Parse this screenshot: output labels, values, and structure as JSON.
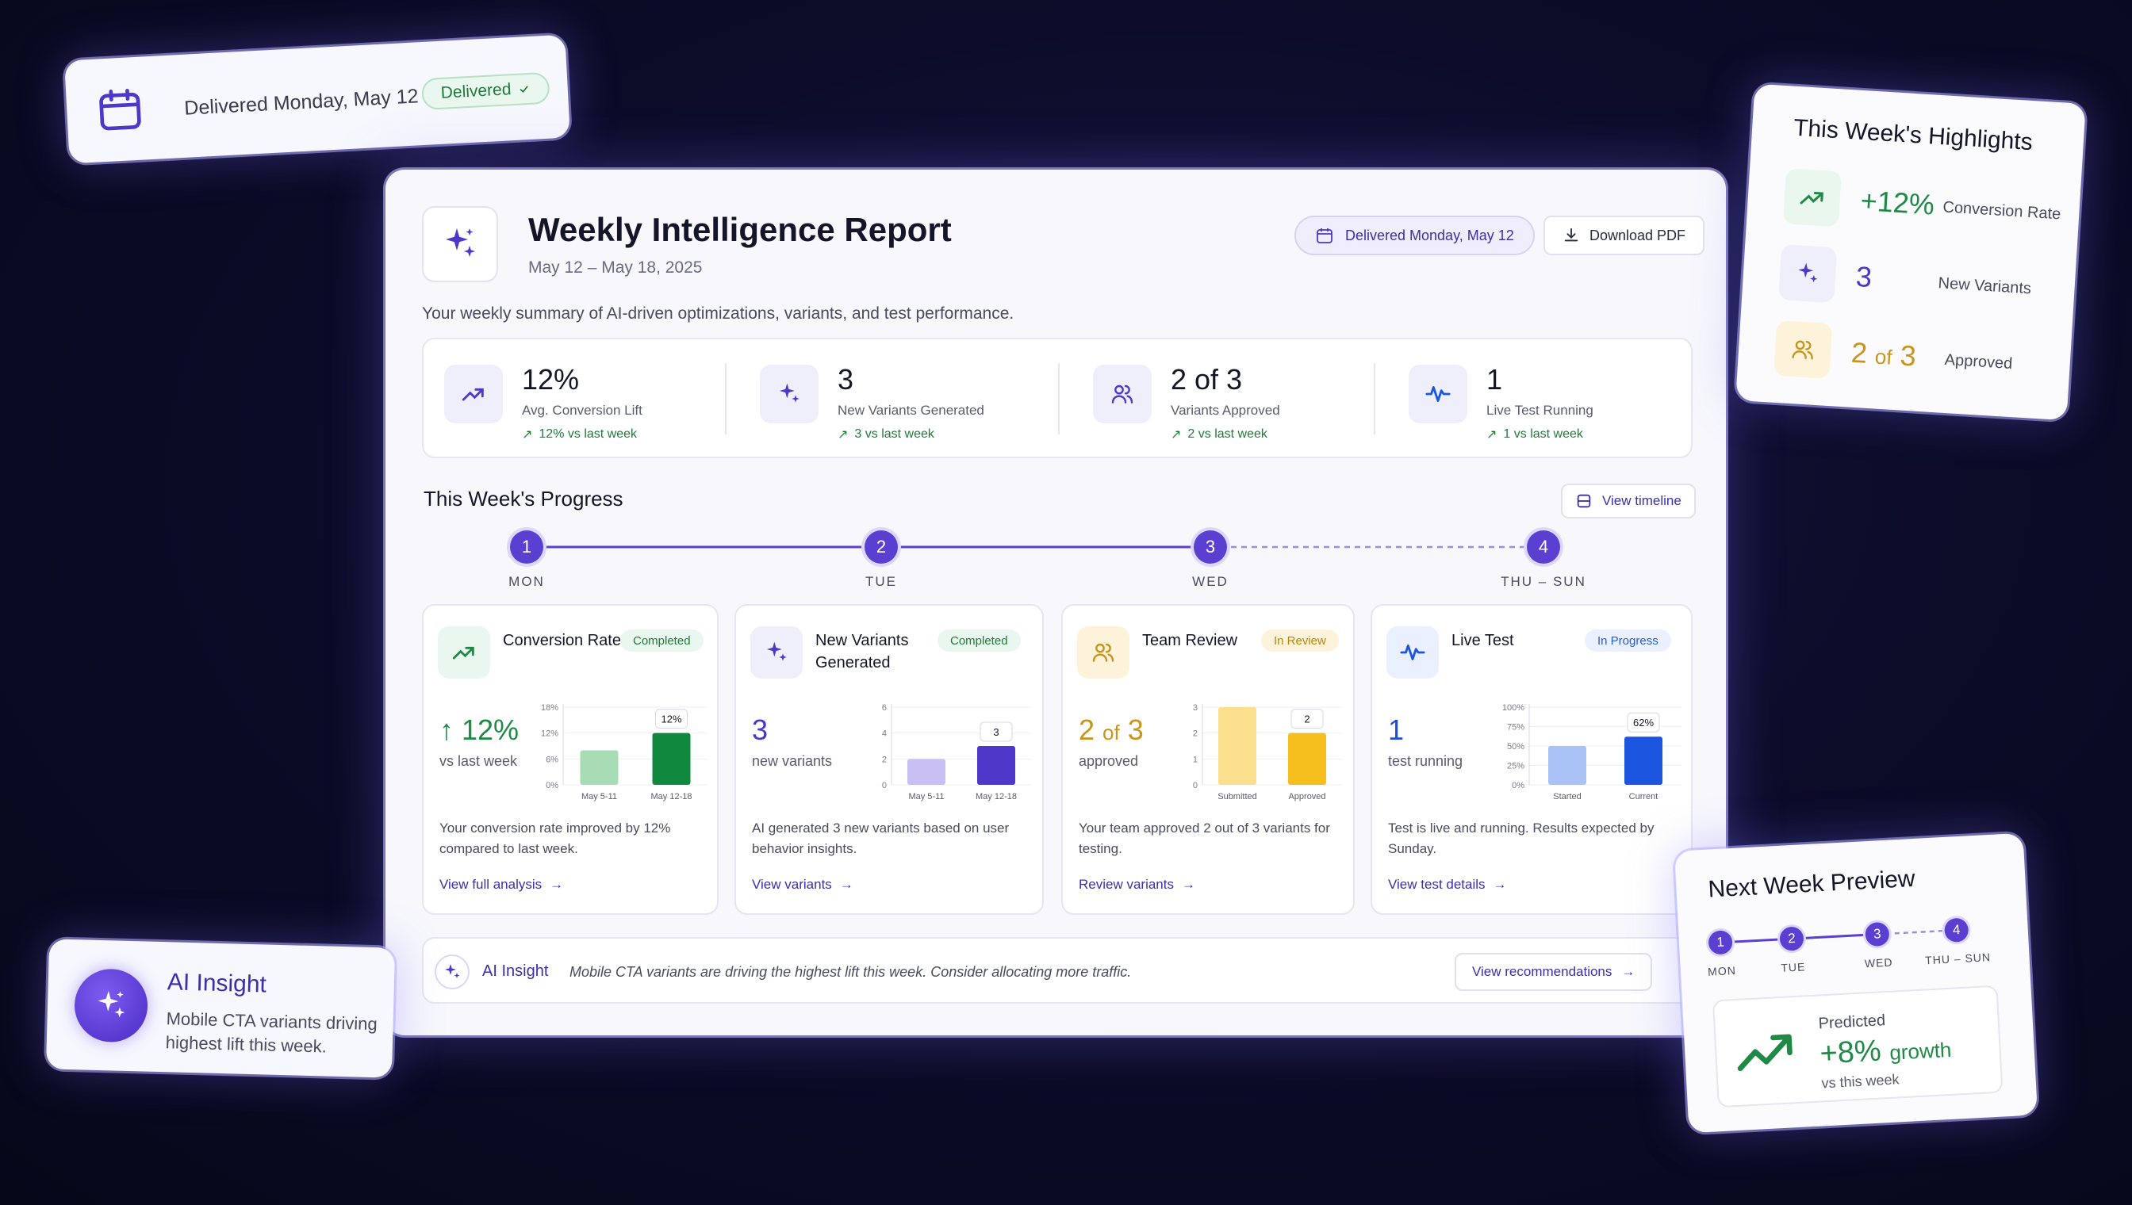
{
  "delivered_card": {
    "text": "Delivered Monday, May 12",
    "badge": "Delivered"
  },
  "report": {
    "title": "Weekly Intelligence Report",
    "range": "May 12 – May 18, 2025",
    "summary": "Your weekly summary of AI-driven optimizations, variants, and test performance.",
    "delivered_pill": "Delivered Monday, May 12",
    "download_label": "Download PDF"
  },
  "stats": [
    {
      "value": "12%",
      "label": "Avg. Conversion Lift",
      "delta": "12% vs last week",
      "icon": "trend-up-icon"
    },
    {
      "value": "3",
      "label": "New Variants Generated",
      "delta": "3 vs last week",
      "icon": "sparkle-icon"
    },
    {
      "value": "2 of 3",
      "label": "Variants Approved",
      "delta": "2 vs last week",
      "icon": "users-icon"
    },
    {
      "value": "1",
      "label": "Live Test Running",
      "delta": "1 vs last week",
      "icon": "pulse-icon"
    }
  ],
  "progress": {
    "title": "This Week's Progress",
    "timeline_label": "View timeline",
    "steps": [
      {
        "num": "1",
        "label": "MON"
      },
      {
        "num": "2",
        "label": "TUE"
      },
      {
        "num": "3",
        "label": "WED"
      },
      {
        "num": "4",
        "label": "THU – SUN"
      }
    ]
  },
  "cards": [
    {
      "title": "Conversion Rate",
      "badge": "Completed",
      "big": "12%",
      "sub": "vs last week",
      "desc": "Your conversion rate improved by 12% compared to last week.",
      "link": "View full analysis",
      "colors": {
        "accent": "#1f8a45",
        "bar1": "#a8dcb5",
        "bar2": "#10893e",
        "icon_bg": "#eaf7ee",
        "badge_bg": "#eaf7ee",
        "badge_fg": "#1f7a3a"
      }
    },
    {
      "title_line1": "New Variants",
      "title_line2": "Generated",
      "badge": "Completed",
      "big": "3",
      "sub": "new variants",
      "desc": "AI generated 3 new variants based on user behavior insights.",
      "link": "View variants",
      "colors": {
        "accent": "#4a36c7",
        "bar1": "#c9bff5",
        "bar2": "#4f37c9",
        "icon_bg": "#efeefb",
        "badge_bg": "#eaf7ee",
        "badge_fg": "#1f7a3a"
      }
    },
    {
      "title": "Team Review",
      "badge": "In Review",
      "big_num": "2",
      "big_of": "of",
      "big_total": "3",
      "sub": "approved",
      "desc": "Your team approved 2 out of 3 variants for testing.",
      "link": "Review variants",
      "colors": {
        "accent": "#c9941a",
        "bar1": "#fbdf8f",
        "bar2": "#f7bf1e",
        "icon_bg": "#fdf3da",
        "badge_bg": "#fdf3da",
        "badge_fg": "#b9860c"
      }
    },
    {
      "title": "Live Test",
      "badge": "In Progress",
      "big": "1",
      "sub": "test running",
      "desc": "Test is live and running. Results expected by Sunday.",
      "link": "View test details",
      "colors": {
        "accent": "#1d4fd6",
        "bar1": "#a9c3f7",
        "bar2": "#1c56e0",
        "icon_bg": "#eaf0fd",
        "badge_bg": "#eaf0fd",
        "badge_fg": "#2a5bd0"
      }
    }
  ],
  "chart_data": [
    {
      "type": "bar",
      "categories": [
        "May 5-11",
        "May 12-18"
      ],
      "values": [
        8,
        12
      ],
      "ylim": [
        0,
        18
      ],
      "yticks": [
        "0%",
        "6%",
        "12%",
        "18%"
      ],
      "data_label": "12%"
    },
    {
      "type": "bar",
      "categories": [
        "May 5-11",
        "May 12-18"
      ],
      "values": [
        2,
        3
      ],
      "ylim": [
        0,
        6
      ],
      "yticks": [
        "0",
        "2",
        "4",
        "6"
      ],
      "data_label": "3"
    },
    {
      "type": "bar",
      "categories": [
        "Submitted",
        "Approved"
      ],
      "values": [
        3,
        2
      ],
      "ylim": [
        0,
        3
      ],
      "yticks": [
        "0",
        "1",
        "2",
        "3"
      ],
      "data_label": "2"
    },
    {
      "type": "bar",
      "categories": [
        "Started",
        "Current"
      ],
      "values": [
        50,
        62
      ],
      "ylim": [
        0,
        100
      ],
      "yticks": [
        "0%",
        "25%",
        "50%",
        "75%",
        "100%"
      ],
      "data_label": "62%"
    }
  ],
  "insight": {
    "label": "AI Insight",
    "text": "Mobile CTA variants are driving the highest lift this week. Consider allocating more traffic.",
    "button": "View recommendations"
  },
  "highlights": {
    "title": "This Week's Highlights",
    "rows": [
      {
        "value": "+12%",
        "label": "Conversion Rate",
        "color": "#1f8a45"
      },
      {
        "value": "3",
        "label": "New Variants",
        "color": "#4a36c7"
      },
      {
        "value_num": "2",
        "value_of": "of",
        "value_total": "3",
        "label": "Approved",
        "color": "#c9941a"
      }
    ]
  },
  "ai_float": {
    "title": "AI Insight",
    "text": "Mobile CTA variants driving highest lift this week."
  },
  "next_week": {
    "title": "Next Week Preview",
    "steps": [
      {
        "num": "1",
        "label": "MON"
      },
      {
        "num": "2",
        "label": "TUE"
      },
      {
        "num": "3",
        "label": "WED"
      },
      {
        "num": "4",
        "label": "THU – SUN"
      }
    ],
    "predicted_label": "Predicted",
    "predicted_value": "+8%",
    "predicted_word": "growth",
    "predicted_sub": "vs this week"
  }
}
